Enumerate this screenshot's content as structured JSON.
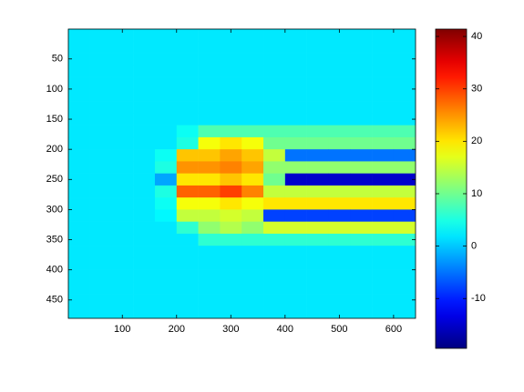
{
  "chart_data": {
    "type": "heatmap",
    "colormap": "jet",
    "x": [
      20,
      60,
      100,
      140,
      180,
      220,
      260,
      300,
      340,
      380,
      420,
      460,
      500,
      540,
      580,
      620
    ],
    "y": [
      10,
      30,
      50,
      70,
      90,
      110,
      130,
      150,
      170,
      190,
      210,
      230,
      250,
      270,
      290,
      310,
      330,
      350,
      370,
      390,
      410,
      430,
      450,
      470
    ],
    "z": [
      [
        2,
        2,
        2,
        2,
        2,
        2,
        2,
        2,
        2,
        2,
        2,
        2,
        2,
        2,
        2,
        2
      ],
      [
        2,
        2,
        2,
        2,
        2,
        2,
        2,
        2,
        2,
        2,
        2,
        2,
        2,
        2,
        2,
        2
      ],
      [
        2,
        2,
        2,
        2,
        2,
        2,
        2,
        2,
        2,
        2,
        2,
        2,
        2,
        2,
        2,
        2
      ],
      [
        2,
        2,
        2,
        2,
        2,
        2,
        2,
        2,
        2,
        2,
        2,
        2,
        2,
        2,
        2,
        2
      ],
      [
        2,
        2,
        2,
        2,
        2,
        2,
        2,
        2,
        2,
        2,
        2,
        2,
        2,
        2,
        2,
        2
      ],
      [
        2,
        2,
        2,
        2,
        2,
        2,
        2,
        2,
        2,
        2,
        2,
        2,
        2,
        2,
        2,
        2
      ],
      [
        2,
        2,
        2,
        2,
        2,
        2,
        2,
        2,
        2,
        2,
        2,
        2,
        2,
        2,
        2,
        2
      ],
      [
        2,
        2,
        2,
        2,
        2,
        2,
        2,
        2,
        2,
        2,
        2,
        2,
        2,
        2,
        2,
        2
      ],
      [
        2,
        2,
        2,
        2,
        2,
        4,
        8,
        8,
        8,
        8,
        8,
        8,
        8,
        8,
        8,
        8
      ],
      [
        2,
        2,
        2,
        2,
        2,
        5,
        18,
        20,
        18,
        10,
        10,
        10,
        10,
        10,
        10,
        10
      ],
      [
        2,
        2,
        2,
        2,
        4,
        22,
        22,
        24,
        22,
        15,
        -5,
        -5,
        -5,
        -5,
        -5,
        -5
      ],
      [
        2,
        2,
        2,
        2,
        5,
        25,
        25,
        26,
        24,
        12,
        12,
        12,
        12,
        12,
        12,
        12
      ],
      [
        2,
        2,
        2,
        2,
        -2,
        20,
        20,
        22,
        20,
        10,
        -15,
        -15,
        -15,
        -15,
        -15,
        -15
      ],
      [
        2,
        2,
        2,
        2,
        5,
        28,
        28,
        30,
        26,
        15,
        15,
        15,
        15,
        15,
        15,
        15
      ],
      [
        2,
        2,
        2,
        2,
        4,
        18,
        18,
        20,
        18,
        20,
        20,
        20,
        20,
        20,
        20,
        20
      ],
      [
        2,
        2,
        2,
        2,
        3,
        15,
        15,
        16,
        15,
        -8,
        -8,
        -8,
        -8,
        -8,
        -8,
        -8
      ],
      [
        2,
        2,
        2,
        2,
        2,
        6,
        12,
        14,
        12,
        16,
        16,
        16,
        16,
        16,
        16,
        16
      ],
      [
        2,
        2,
        2,
        2,
        2,
        2,
        6,
        6,
        6,
        6,
        6,
        6,
        6,
        6,
        6,
        6
      ],
      [
        2,
        2,
        2,
        2,
        2,
        2,
        2,
        2,
        2,
        2,
        2,
        2,
        2,
        2,
        2,
        2
      ],
      [
        2,
        2,
        2,
        2,
        2,
        2,
        2,
        2,
        2,
        2,
        2,
        2,
        2,
        2,
        2,
        2
      ],
      [
        2,
        2,
        2,
        2,
        2,
        2,
        2,
        2,
        2,
        2,
        2,
        2,
        2,
        2,
        2,
        2
      ],
      [
        2,
        2,
        2,
        2,
        2,
        2,
        2,
        2,
        2,
        2,
        2,
        2,
        2,
        2,
        2,
        2
      ],
      [
        2,
        2,
        2,
        2,
        2,
        2,
        2,
        2,
        2,
        2,
        2,
        2,
        2,
        2,
        2,
        2
      ],
      [
        2,
        2,
        2,
        2,
        2,
        2,
        2,
        2,
        2,
        2,
        2,
        2,
        2,
        2,
        2,
        2
      ]
    ],
    "xlim": [
      0.5,
      640.5
    ],
    "ylim": [
      0.5,
      480.5
    ],
    "y_reversed": true,
    "xticks": [
      100,
      200,
      300,
      400,
      500,
      600
    ],
    "yticks": [
      50,
      100,
      150,
      200,
      250,
      300,
      350,
      400,
      450
    ],
    "clim": [
      -19.5,
      41.4
    ],
    "cticks": [
      -10,
      0,
      10,
      20,
      30,
      40
    ]
  }
}
